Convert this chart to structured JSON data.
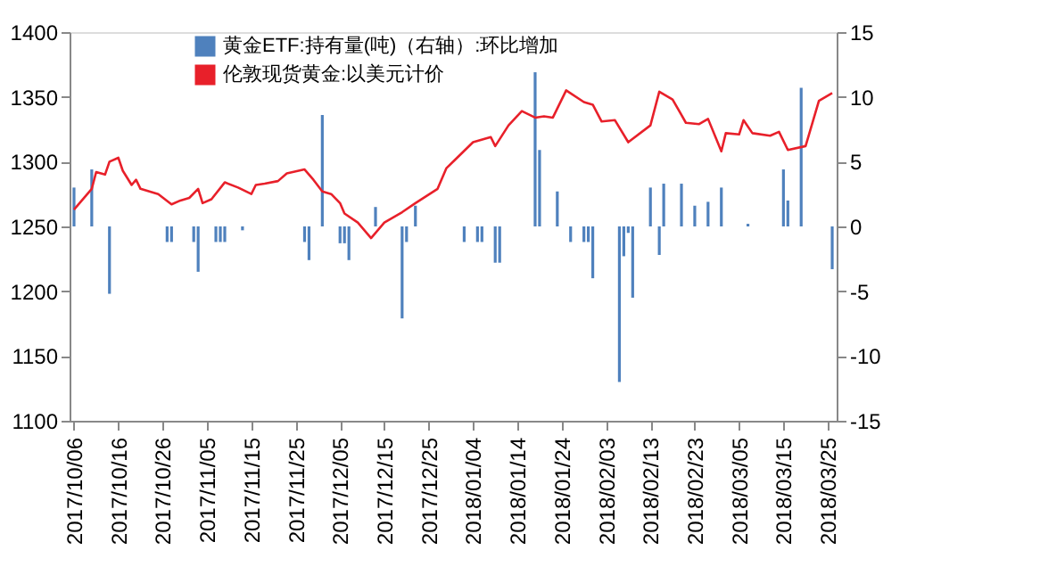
{
  "chart_data": {
    "type": "bar",
    "legend": "top",
    "grid": false,
    "xlim": [
      "2017-10-05",
      "2018-03-27"
    ],
    "xticks": [
      {
        "value": "2017-10-06",
        "label": "2017/10/06"
      },
      {
        "value": "2017-10-16",
        "label": "2017/10/16"
      },
      {
        "value": "2017-10-26",
        "label": "2017/10/26"
      },
      {
        "value": "2017-11-05",
        "label": "2017/11/05"
      },
      {
        "value": "2017-11-15",
        "label": "2017/11/15"
      },
      {
        "value": "2017-11-25",
        "label": "2017/11/25"
      },
      {
        "value": "2017-12-05",
        "label": "2017/12/05"
      },
      {
        "value": "2017-12-15",
        "label": "2017/12/15"
      },
      {
        "value": "2017-12-25",
        "label": "2017/12/25"
      },
      {
        "value": "2018-01-04",
        "label": "2018/01/04"
      },
      {
        "value": "2018-01-14",
        "label": "2018/01/14"
      },
      {
        "value": "2018-01-24",
        "label": "2018/01/24"
      },
      {
        "value": "2018-02-03",
        "label": "2018/02/03"
      },
      {
        "value": "2018-02-13",
        "label": "2018/02/13"
      },
      {
        "value": "2018-02-23",
        "label": "2018/02/23"
      },
      {
        "value": "2018-03-05",
        "label": "2018/03/05"
      },
      {
        "value": "2018-03-15",
        "label": "2018/03/15"
      },
      {
        "value": "2018-03-25",
        "label": "2018/03/25"
      }
    ],
    "ylim": [
      1100,
      1400
    ],
    "yticks": [
      1100,
      1150,
      1200,
      1250,
      1300,
      1350,
      1400
    ],
    "y2lim": [
      -15,
      15
    ],
    "y2ticks": [
      -15,
      -10,
      -5,
      0,
      5,
      10,
      15
    ],
    "series": [
      {
        "name": "黄金ETF:持有量(吨)（右轴）:环比增加",
        "axis": "y2",
        "color": "#4f81bd",
        "x": [
          "2017-10-06",
          "2017-10-10",
          "2017-10-14",
          "2017-10-27",
          "2017-10-28",
          "2017-11-02",
          "2017-11-03",
          "2017-11-07",
          "2017-11-08",
          "2017-11-09",
          "2017-11-13",
          "2017-11-27",
          "2017-11-28",
          "2017-12-01",
          "2017-12-05",
          "2017-12-06",
          "2017-12-07",
          "2017-12-13",
          "2017-12-19",
          "2017-12-20",
          "2017-12-22",
          "2018-01-02",
          "2018-01-05",
          "2018-01-06",
          "2018-01-09",
          "2018-01-10",
          "2018-01-18",
          "2018-01-19",
          "2018-01-23",
          "2018-01-26",
          "2018-01-29",
          "2018-01-30",
          "2018-01-31",
          "2018-02-06",
          "2018-02-07",
          "2018-02-08",
          "2018-02-09",
          "2018-02-13",
          "2018-02-15",
          "2018-02-16",
          "2018-02-20",
          "2018-02-23",
          "2018-02-26",
          "2018-03-01",
          "2018-03-07",
          "2018-03-15",
          "2018-03-16",
          "2018-03-19",
          "2018-03-26"
        ],
        "values": [
          3.0,
          4.4,
          -5.2,
          -1.2,
          -1.2,
          -1.2,
          -3.5,
          -1.2,
          -1.2,
          -1.2,
          -0.3,
          -1.2,
          -2.6,
          8.6,
          -1.3,
          -1.3,
          -2.6,
          1.5,
          -7.1,
          -1.2,
          1.6,
          -1.2,
          -1.2,
          -1.2,
          -2.8,
          -2.8,
          11.9,
          5.9,
          2.7,
          -1.2,
          -1.2,
          -1.2,
          -4.0,
          -12.0,
          -2.3,
          -0.5,
          -5.5,
          3.0,
          -2.2,
          3.3,
          3.3,
          1.6,
          1.9,
          3.0,
          0.2,
          4.4,
          2.0,
          10.7,
          -3.3
        ]
      },
      {
        "name": "伦敦现货黄金:以美元计价",
        "type": "line",
        "color": "#e8202a",
        "x": [
          "2017-10-06",
          "2017-10-10",
          "2017-10-11",
          "2017-10-13",
          "2017-10-14",
          "2017-10-16",
          "2017-10-17",
          "2017-10-19",
          "2017-10-20",
          "2017-10-21",
          "2017-10-23",
          "2017-10-25",
          "2017-10-28",
          "2017-10-30",
          "2017-11-01",
          "2017-11-03",
          "2017-11-04",
          "2017-11-06",
          "2017-11-09",
          "2017-11-12",
          "2017-11-15",
          "2017-11-16",
          "2017-11-18",
          "2017-11-21",
          "2017-11-23",
          "2017-11-27",
          "2017-11-29",
          "2017-12-01",
          "2017-12-03",
          "2017-12-05",
          "2017-12-06",
          "2017-12-09",
          "2017-12-12",
          "2017-12-15",
          "2017-12-19",
          "2017-12-22",
          "2017-12-27",
          "2017-12-29",
          "2018-01-04",
          "2018-01-08",
          "2018-01-09",
          "2018-01-12",
          "2018-01-15",
          "2018-01-18",
          "2018-01-20",
          "2018-01-22",
          "2018-01-25",
          "2018-01-29",
          "2018-01-31",
          "2018-02-02",
          "2018-02-05",
          "2018-02-08",
          "2018-02-13",
          "2018-02-15",
          "2018-02-18",
          "2018-02-21",
          "2018-02-24",
          "2018-02-26",
          "2018-03-01",
          "2018-03-02",
          "2018-03-05",
          "2018-03-06",
          "2018-03-08",
          "2018-03-12",
          "2018-03-14",
          "2018-03-16",
          "2018-03-20",
          "2018-03-23",
          "2018-03-26"
        ],
        "values": [
          1263,
          1279,
          1292,
          1290,
          1300,
          1303,
          1293,
          1282,
          1286,
          1279,
          1277,
          1275,
          1267,
          1270,
          1272,
          1279,
          1268,
          1271,
          1284,
          1280,
          1275,
          1282,
          1283,
          1285,
          1291,
          1294,
          1286,
          1277,
          1275,
          1268,
          1260,
          1253,
          1241,
          1253,
          1261,
          1268,
          1279,
          1295,
          1315,
          1319,
          1312,
          1328,
          1339,
          1334,
          1335,
          1334,
          1355,
          1346,
          1344,
          1331,
          1332,
          1315,
          1328,
          1354,
          1348,
          1330,
          1329,
          1333,
          1308,
          1322,
          1321,
          1332,
          1322,
          1320,
          1323,
          1309,
          1312,
          1347,
          1353
        ]
      }
    ]
  }
}
